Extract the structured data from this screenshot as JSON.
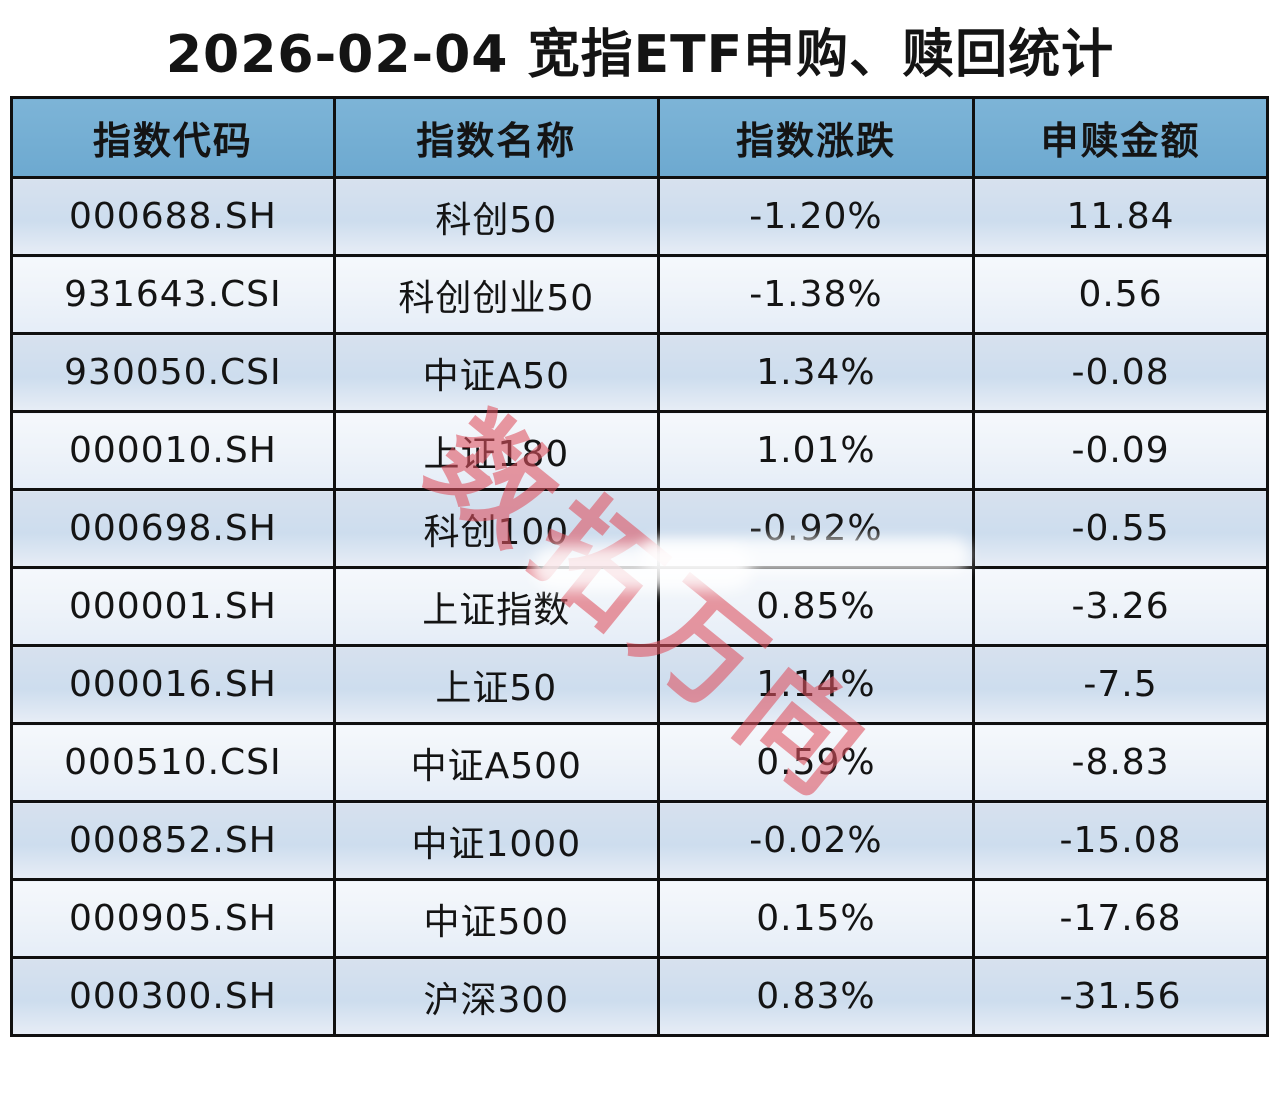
{
  "title": "2026-02-04 宽指ETF申购、赎回统计",
  "watermark": "数拓万向",
  "colors": {
    "header_bg": "#74aed3",
    "row_odd": "#cdddee",
    "row_even": "#f0f4fa",
    "border": "#101010",
    "text": "#141414",
    "watermark": "#df5260",
    "background": "#ffffff"
  },
  "chart_data": {
    "type": "table",
    "title": "2026-02-04 宽指ETF申购、赎回统计",
    "columns": [
      "指数代码",
      "指数名称",
      "指数涨跌",
      "申赎金额"
    ],
    "rows": [
      [
        "000688.SH",
        "科创50",
        "-1.20%",
        "11.84"
      ],
      [
        "931643.CSI",
        "科创创业50",
        "-1.38%",
        "0.56"
      ],
      [
        "930050.CSI",
        "中证A50",
        "1.34%",
        "-0.08"
      ],
      [
        "000010.SH",
        "上证180",
        "1.01%",
        "-0.09"
      ],
      [
        "000698.SH",
        "科创100",
        "-0.92%",
        "-0.55"
      ],
      [
        "000001.SH",
        "上证指数",
        "0.85%",
        "-3.26"
      ],
      [
        "000016.SH",
        "上证50",
        "1.14%",
        "-7.5"
      ],
      [
        "000510.CSI",
        "中证A500",
        "0.59%",
        "-8.83"
      ],
      [
        "000852.SH",
        "中证1000",
        "-0.02%",
        "-15.08"
      ],
      [
        "000905.SH",
        "中证500",
        "0.15%",
        "-17.68"
      ],
      [
        "000300.SH",
        "沪深300",
        "0.83%",
        "-31.56"
      ]
    ]
  }
}
